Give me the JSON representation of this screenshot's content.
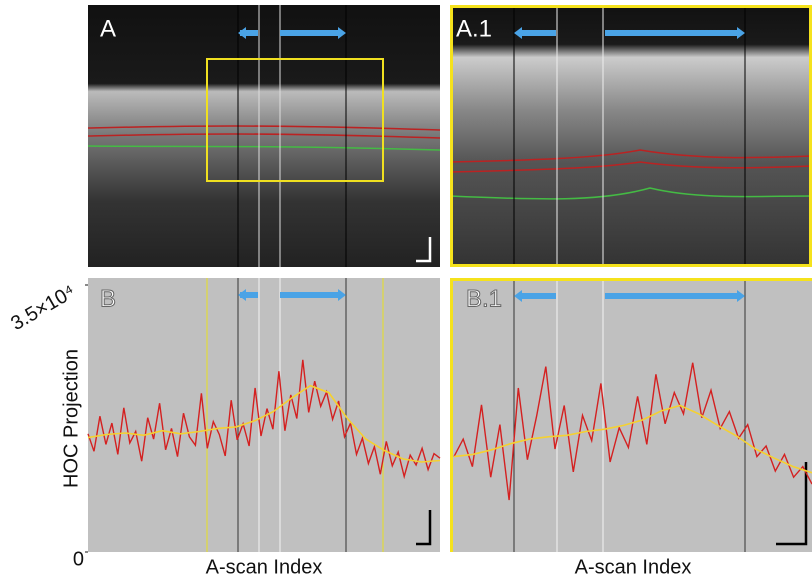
{
  "images": [
    {
      "label": "A"
    },
    {
      "label": "A.1"
    }
  ],
  "chart_data": [
    {
      "type": "line",
      "title": "B",
      "ylabel": "HOC Projection",
      "xlabel": "A-scan Index",
      "ylim": [
        0,
        35000
      ],
      "yticks": [
        0,
        {
          "value": 35000,
          "label": "3.5×10⁴"
        }
      ],
      "series": [
        {
          "color": "#d42020",
          "values": [
            15500,
            13200,
            17800,
            14100,
            16900,
            12800,
            18900,
            14300,
            15800,
            11900,
            17600,
            14800,
            19500,
            13400,
            16200,
            12500,
            18200,
            15100,
            14000,
            20800,
            13600,
            17100,
            15400,
            12600,
            19900,
            14700,
            16800,
            13900,
            21500,
            15200,
            18800,
            16100,
            23700,
            15900,
            20600,
            17500,
            25200,
            18300,
            22400,
            19100,
            21000,
            17400,
            19800,
            15100,
            16900,
            12800,
            14900,
            11600,
            13800,
            10200,
            14500,
            11300,
            13100,
            9900,
            12700,
            11400,
            13600,
            10800,
            12900,
            12300
          ]
        },
        {
          "color": "#f5d130",
          "values": [
            15000,
            15400,
            15600,
            15300,
            15900,
            15500,
            15800,
            16200,
            16400,
            17200,
            18400,
            20200,
            21800,
            20900,
            17500,
            14800,
            13300,
            12200,
            11800,
            12000
          ]
        }
      ]
    },
    {
      "type": "line",
      "title": "B.1",
      "xlabel": "A-scan Index",
      "ylim": [
        0,
        35000
      ],
      "series": [
        {
          "color": "#d42020",
          "values": [
            12500,
            14800,
            11200,
            19300,
            9800,
            16700,
            6800,
            21500,
            12100,
            17800,
            24300,
            13500,
            19200,
            10500,
            17900,
            14600,
            22100,
            11800,
            16300,
            13700,
            20400,
            14100,
            23300,
            16800,
            20900,
            18100,
            24800,
            17600,
            21200,
            16200,
            18400,
            14900,
            16700,
            12500,
            13900,
            10600,
            12800,
            9800,
            11200,
            8900
          ]
        },
        {
          "color": "#f5d130",
          "values": [
            12500,
            12800,
            13400,
            14200,
            14800,
            15100,
            15300,
            15800,
            16100,
            16600,
            17300,
            18500,
            19200,
            18100,
            16600,
            15200,
            13500,
            12300,
            11200,
            10400
          ]
        }
      ]
    }
  ]
}
